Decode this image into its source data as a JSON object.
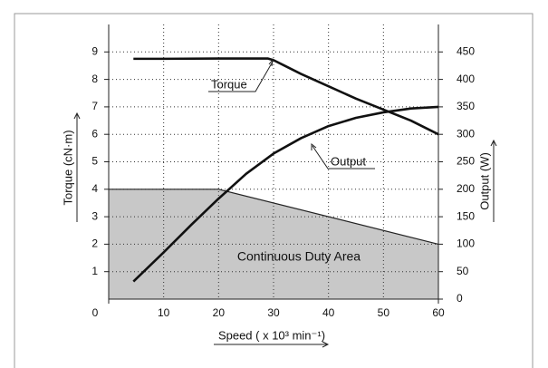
{
  "chart_data": {
    "type": "line",
    "x_label": "Speed ( x 10³ min⁻¹)",
    "y_label": "Torque (cN·m)",
    "y2_label": "Output (W)",
    "xlim": [
      0,
      60
    ],
    "xticks": [
      0,
      10,
      20,
      30,
      40,
      50,
      60
    ],
    "ylim": [
      0,
      10
    ],
    "yticks": [
      1,
      2,
      3,
      4,
      5,
      6,
      7,
      8,
      9
    ],
    "y2lim": [
      0,
      500
    ],
    "y2ticks": [
      0,
      50,
      100,
      150,
      200,
      250,
      300,
      350,
      400,
      450
    ],
    "grid": true,
    "series": [
      {
        "name": "Continuous Duty Area",
        "kind": "area",
        "color": "#c8c8c8",
        "x": [
          0,
          20,
          60
        ],
        "values": [
          4,
          4,
          2
        ]
      },
      {
        "name": "Torque",
        "color": "#111111",
        "x": [
          4.5,
          10,
          20,
          29,
          30,
          32,
          35,
          40,
          45,
          50,
          55,
          60
        ],
        "values": [
          8.75,
          8.75,
          8.76,
          8.76,
          8.7,
          8.5,
          8.2,
          7.75,
          7.3,
          6.9,
          6.5,
          6.0
        ]
      },
      {
        "name": "Output",
        "color": "#111111",
        "axis": "y2",
        "x": [
          4.5,
          10,
          15,
          20,
          25,
          30,
          35,
          40,
          45,
          50,
          55,
          60
        ],
        "values": [
          32,
          85,
          135,
          183,
          228,
          265,
          293,
          315,
          330,
          340,
          347,
          350
        ]
      }
    ]
  }
}
